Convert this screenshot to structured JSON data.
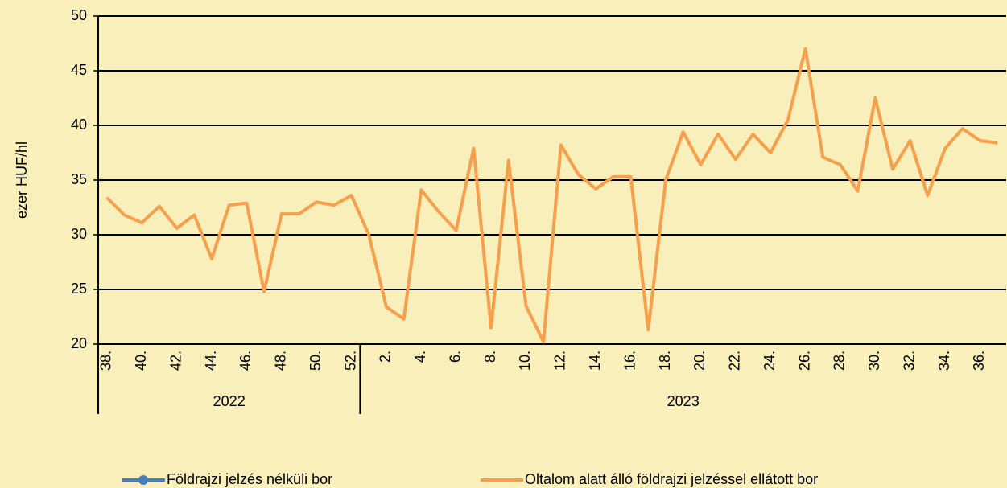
{
  "chart_data": {
    "type": "line",
    "y_label": "ezer HUF/hl",
    "categories": [
      "38.",
      null,
      "40.",
      null,
      "42.",
      null,
      "44.",
      null,
      "46.",
      null,
      "48.",
      null,
      "50.",
      null,
      "52.",
      null,
      "2.",
      null,
      "4.",
      null,
      "6.",
      null,
      "8.",
      null,
      "10.",
      null,
      "12.",
      null,
      "14.",
      null,
      "16.",
      null,
      "18.",
      null,
      "20.",
      null,
      "22.",
      null,
      "24.",
      null,
      "26.",
      null,
      "28.",
      null,
      "30.",
      null,
      "32.",
      null,
      "34.",
      null,
      "36.",
      null
    ],
    "x_groups": [
      {
        "label": "2022",
        "size": 15
      },
      {
        "label": "2023",
        "size": 37
      }
    ],
    "series": [
      {
        "name": "Földrajzi jelzés nélküli bor",
        "color": "#4a7ebb",
        "marker": true,
        "values": [
          null,
          null,
          null,
          null,
          null,
          null,
          null,
          null,
          null,
          null,
          null,
          null,
          null,
          null,
          null,
          null,
          null,
          null,
          null,
          null,
          null,
          null,
          null,
          null,
          null,
          null,
          null,
          null,
          null,
          null,
          null,
          null,
          null,
          null,
          null,
          null,
          null,
          null,
          null,
          null,
          null,
          null,
          null,
          null,
          null,
          null,
          null,
          null,
          null,
          null,
          null,
          null
        ]
      },
      {
        "name": "Oltalom alatt álló földrajzi jelzéssel ellátott bor",
        "color": "#f6a04d",
        "marker": false,
        "values": [
          33.4,
          31.8,
          31.1,
          32.6,
          30.6,
          31.8,
          27.8,
          32.7,
          32.9,
          24.8,
          31.9,
          31.9,
          33.0,
          32.7,
          33.6,
          30.0,
          23.4,
          22.3,
          34.1,
          32.1,
          30.4,
          37.9,
          21.5,
          36.8,
          23.5,
          20.2,
          38.2,
          35.5,
          34.2,
          35.3,
          35.3,
          21.3,
          35.0,
          39.4,
          36.4,
          39.2,
          36.9,
          39.2,
          37.5,
          40.5,
          47.0,
          37.1,
          36.4,
          34.0,
          42.5,
          36.0,
          38.6,
          33.6,
          37.9,
          39.7,
          38.6,
          38.4
        ]
      }
    ],
    "ylim": [
      20,
      50
    ],
    "yticks": [
      20,
      25,
      30,
      35,
      40,
      45,
      50
    ],
    "grid": true
  }
}
